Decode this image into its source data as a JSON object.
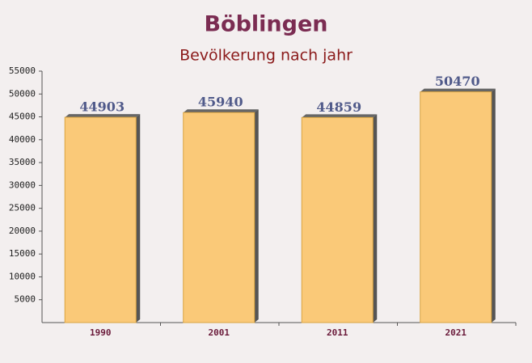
{
  "chart_data": {
    "type": "bar",
    "title": "Böblingen",
    "subtitle": "Bevölkerung nach jahr",
    "categories": [
      "1990",
      "2001",
      "2011",
      "2021"
    ],
    "values": [
      44903,
      45940,
      44859,
      50470
    ],
    "color": "#fbc46a",
    "ylim": [
      0,
      55000
    ],
    "yticks": [
      5000,
      10000,
      15000,
      20000,
      25000,
      30000,
      35000,
      40000,
      45000,
      50000,
      55000
    ]
  }
}
